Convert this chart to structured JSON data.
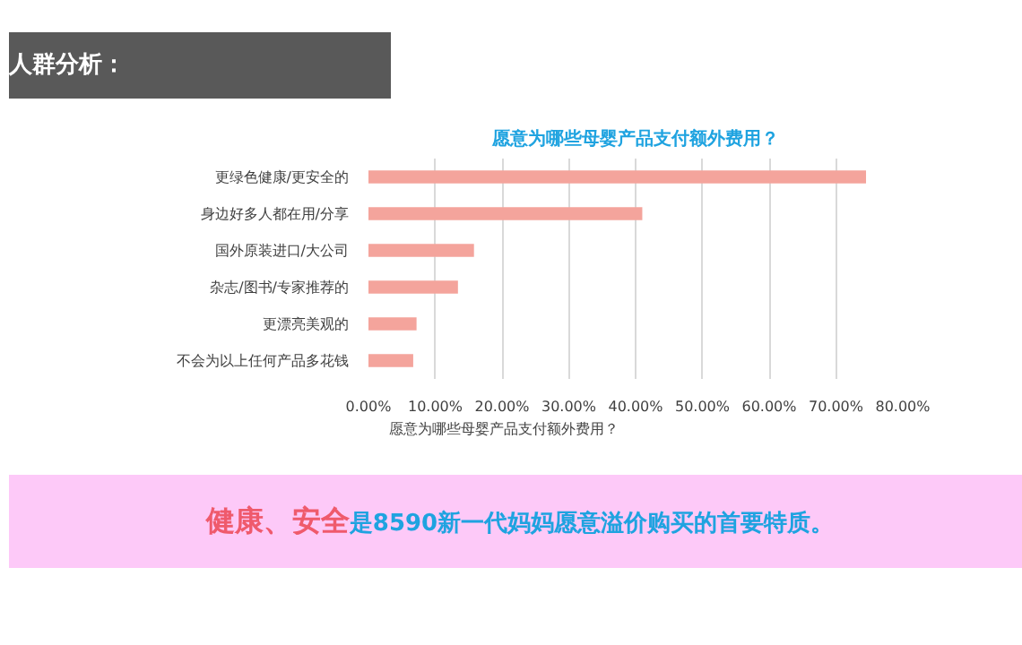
{
  "chart_data": {
    "type": "bar",
    "orientation": "horizontal",
    "title": "愿意为哪些母婴产品支付额外费用？",
    "categories": [
      "更绿色健康/更安全的",
      "身边好多人都在用/分享",
      "国外原装进口/大公司",
      "杂志/图书/专家推荐的",
      "更漂亮美观的",
      "不会为以上任何产品多花钱"
    ],
    "series": [
      {
        "name": "愿意为哪些母婴产品支付额外费用？",
        "color": "#f4a49c",
        "values": [
          74.5,
          41,
          15.8,
          13.4,
          7.2,
          6.7
        ]
      }
    ],
    "xlim": [
      0,
      80
    ],
    "xticks": [
      {
        "value": 0,
        "label": "0.00%"
      },
      {
        "value": 10,
        "label": "10.00%"
      },
      {
        "value": 20,
        "label": "20.00%"
      },
      {
        "value": 30,
        "label": "30.00%"
      },
      {
        "value": 40,
        "label": "40.00%"
      },
      {
        "value": 50,
        "label": "50.00%"
      },
      {
        "value": 60,
        "label": "60.00%"
      },
      {
        "value": 70,
        "label": "70.00%"
      },
      {
        "value": 80,
        "label": "80.00%"
      }
    ],
    "grid": "x",
    "legend": "bottom",
    "annotations": [
      "人群分析：",
      "健康、安全",
      "是8590新一代妈妈愿意溢价购买的首要特质。"
    ]
  }
}
